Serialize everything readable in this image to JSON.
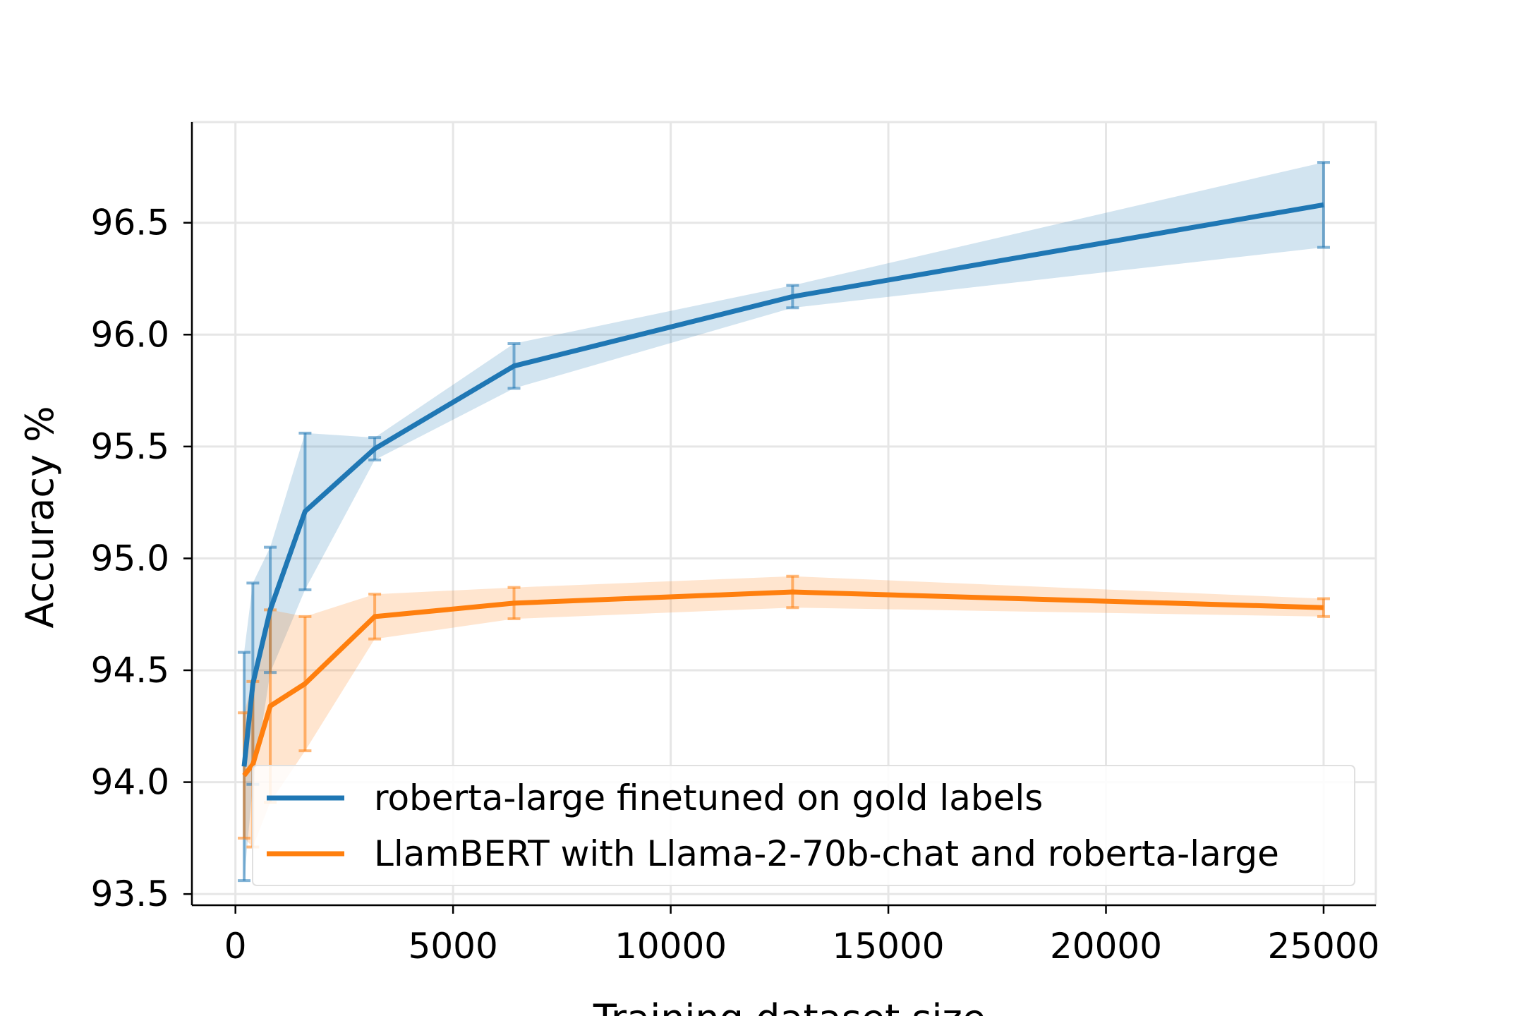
{
  "chart_data": {
    "type": "line",
    "title": "",
    "xlabel": "Training dataset size",
    "ylabel": "Accuracy %",
    "xlim": [
      -1000,
      26200
    ],
    "ylim": [
      3.45,
      96.95
    ],
    "xticks": [
      0,
      5000,
      10000,
      15000,
      20000,
      25000
    ],
    "xtick_labels": [
      "0",
      "5000",
      "10000",
      "15000",
      "20000",
      "25000"
    ],
    "yticks": [
      93.5,
      94.0,
      94.5,
      95.0,
      95.5,
      96.0,
      96.5
    ],
    "ytick_labels": [
      "93.5",
      "94.0",
      "94.5",
      "95.0",
      "95.5",
      "96.0",
      "96.5"
    ],
    "grid": true,
    "legend_position": "bottom-right",
    "series": [
      {
        "name": "roberta-large finetuned on gold labels",
        "color": "#1f77b4",
        "x": [
          200,
          400,
          800,
          1600,
          3200,
          6400,
          12800,
          25000
        ],
        "y": [
          94.07,
          94.44,
          94.77,
          95.21,
          95.49,
          95.86,
          96.17,
          96.58
        ],
        "err": [
          0.51,
          0.45,
          0.28,
          0.35,
          0.05,
          0.1,
          0.05,
          0.19
        ]
      },
      {
        "name": "LlamBERT with Llama-2-70b-chat and roberta-large",
        "color": "#ff7f0e",
        "x": [
          200,
          400,
          800,
          1600,
          3200,
          6400,
          12800,
          25000
        ],
        "y": [
          94.03,
          94.08,
          94.34,
          94.44,
          94.74,
          94.8,
          94.85,
          94.78
        ],
        "err": [
          0.28,
          0.37,
          0.43,
          0.3,
          0.1,
          0.07,
          0.07,
          0.04
        ]
      }
    ]
  }
}
